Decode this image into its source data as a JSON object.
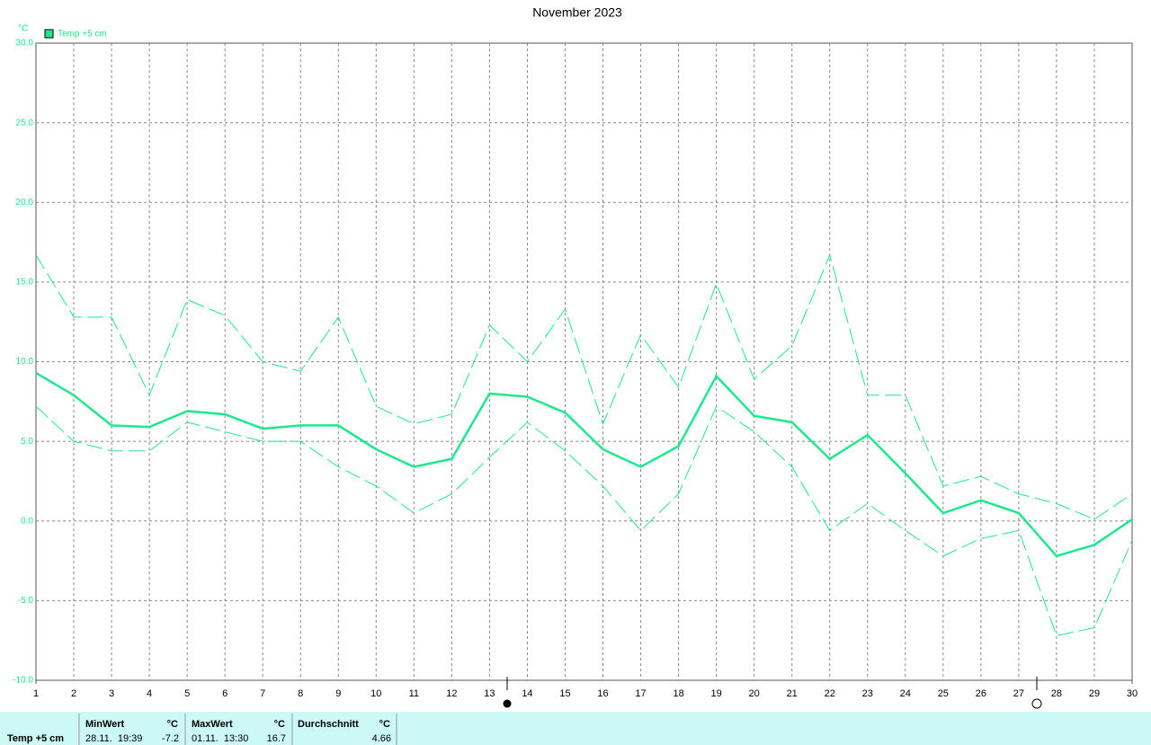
{
  "chart_data": {
    "type": "line",
    "title": "November 2023",
    "y_unit": "°C",
    "x": [
      1,
      2,
      3,
      4,
      5,
      6,
      7,
      8,
      9,
      10,
      11,
      12,
      13,
      14,
      15,
      16,
      17,
      18,
      19,
      20,
      21,
      22,
      23,
      24,
      25,
      26,
      27,
      28,
      29,
      30
    ],
    "xlim": [
      1,
      30
    ],
    "xticks": [
      1,
      2,
      3,
      4,
      5,
      6,
      7,
      8,
      9,
      10,
      11,
      12,
      13,
      14,
      15,
      16,
      17,
      18,
      19,
      20,
      21,
      22,
      23,
      24,
      25,
      26,
      27,
      28,
      29,
      30
    ],
    "ylim": [
      -10,
      30
    ],
    "yticks": [
      {
        "value": -10,
        "label": "-10.0"
      },
      {
        "value": -5,
        "label": "-5.0"
      },
      {
        "value": 0,
        "label": "0.0"
      },
      {
        "value": 5,
        "label": "5.0"
      },
      {
        "value": 10,
        "label": "10.0"
      },
      {
        "value": 15,
        "label": "15.0"
      },
      {
        "value": 20,
        "label": "20.0"
      },
      {
        "value": 25,
        "label": "25.0"
      },
      {
        "value": 30,
        "label": "30.0"
      }
    ],
    "grid": true,
    "series": [
      {
        "name": "Temp +5 cm",
        "color": "#1ee88c",
        "values": [
          9.3,
          7.9,
          6.0,
          5.9,
          6.9,
          6.7,
          5.8,
          6.0,
          6.0,
          4.5,
          3.4,
          3.9,
          8.0,
          7.8,
          6.8,
          4.5,
          3.4,
          4.7,
          9.1,
          6.6,
          6.2,
          3.9,
          5.4,
          3.0,
          0.5,
          1.3,
          0.5,
          -2.2,
          -1.5,
          0.1
        ]
      },
      {
        "color": "#1ee88c",
        "dashed": true,
        "values": [
          16.7,
          12.8,
          12.8,
          7.9,
          13.9,
          12.9,
          10.0,
          9.4,
          12.8,
          7.2,
          6.1,
          6.7,
          12.3,
          10.0,
          13.3,
          6.1,
          11.7,
          8.4,
          14.9,
          8.9,
          11.0,
          16.7,
          7.9,
          7.9,
          2.2,
          2.8,
          1.7,
          1.1,
          0.1,
          1.7
        ]
      },
      {
        "color": "#1ee88c",
        "dashed": true,
        "values": [
          7.2,
          5.0,
          4.4,
          4.4,
          6.2,
          5.6,
          5.0,
          5.0,
          3.4,
          2.2,
          0.5,
          1.7,
          4.0,
          6.2,
          4.4,
          2.2,
          -0.6,
          1.7,
          7.2,
          5.6,
          3.4,
          -0.6,
          1.1,
          -0.6,
          -2.2,
          -1.1,
          -0.6,
          -7.2,
          -6.7,
          -1.2
        ]
      }
    ]
  },
  "footer": {
    "sensor": "Temp +5 cm",
    "min": {
      "label": "MinWert",
      "unit": "°C",
      "time": "28.11.  19:39",
      "value": "-7.2"
    },
    "max": {
      "label": "MaxWert",
      "unit": "°C",
      "time": "01.11.  13:30",
      "value": "16.7"
    },
    "avg": {
      "label": "Durchschnitt",
      "unit": "°C",
      "value": "4.66"
    }
  }
}
